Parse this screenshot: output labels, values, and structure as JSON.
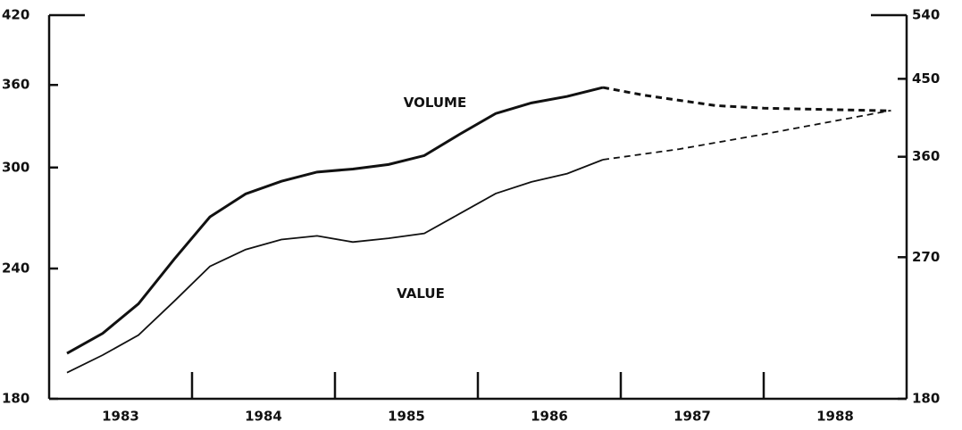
{
  "chart_data": {
    "type": "line",
    "categories": [
      "1983",
      "1984",
      "1985",
      "1986",
      "1987",
      "1988"
    ],
    "xlim": [
      1983,
      1989
    ],
    "xticks": [
      1984,
      1985,
      1986,
      1987,
      1988
    ],
    "ylim": [
      180,
      420
    ],
    "yticks": [
      180,
      240,
      300,
      360,
      420
    ],
    "y2lim": [
      180,
      540
    ],
    "y2ticks": [
      180,
      270,
      360,
      450,
      540
    ],
    "log_scale": true,
    "annotations": [
      {
        "text": "VOLUME",
        "x": 1985.7,
        "y": 346
      },
      {
        "text": "VALUE",
        "x": 1985.6,
        "y": 243
      }
    ],
    "series": [
      {
        "name": "VOLUME",
        "color": "#111",
        "axis": "y",
        "width": 3,
        "dashed_from_index": 15,
        "x": [
          1983.125,
          1983.375,
          1983.625,
          1983.875,
          1984.125,
          1984.375,
          1984.625,
          1984.875,
          1985.125,
          1985.375,
          1985.625,
          1985.875,
          1986.125,
          1986.375,
          1986.625,
          1986.875,
          1987.16,
          1987.66,
          1988.0,
          1988.89
        ],
        "values": [
          199,
          208,
          222,
          245,
          269,
          283,
          291,
          297,
          299,
          302,
          308,
          323,
          338,
          346,
          351,
          358,
          352,
          344,
          342,
          340
        ]
      },
      {
        "name": "VALUE",
        "color": "#111",
        "axis": "y2",
        "width": 1.8,
        "dashed_from_index": 15,
        "x": [
          1983.125,
          1983.375,
          1983.625,
          1983.875,
          1984.125,
          1984.375,
          1984.625,
          1984.875,
          1985.125,
          1985.375,
          1985.625,
          1985.875,
          1986.125,
          1986.375,
          1986.625,
          1986.875,
          1987.41,
          1988.0,
          1988.89
        ],
        "values": [
          194,
          204,
          216,
          238,
          263,
          276,
          284,
          287,
          282,
          285,
          289,
          306,
          324,
          335,
          343,
          357,
          368,
          384,
          411
        ]
      }
    ]
  }
}
